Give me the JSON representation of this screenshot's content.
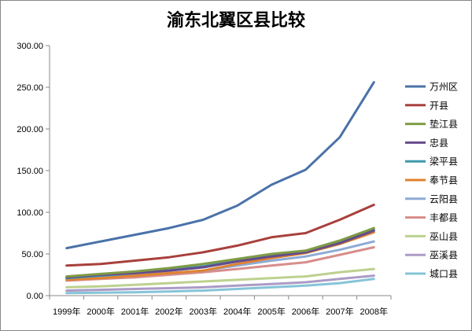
{
  "chart_data": {
    "type": "line",
    "title": "渝东北翼区县比较",
    "xlabel": "",
    "ylabel": "",
    "categories": [
      "1999年",
      "2000年",
      "2001年",
      "2002年",
      "2003年",
      "2004年",
      "2005年",
      "2006年",
      "2007年",
      "2008年"
    ],
    "ylim": [
      0,
      300
    ],
    "yticks": [
      "0.00",
      "50.00",
      "100.00",
      "150.00",
      "200.00",
      "250.00",
      "300.00"
    ],
    "grid": false,
    "legend_position": "right",
    "series": [
      {
        "name": "万州区",
        "color": "#4a72a8",
        "values": [
          57,
          65,
          73,
          81,
          91,
          108,
          133,
          151,
          190,
          256
        ]
      },
      {
        "name": "开县",
        "color": "#a8403c",
        "values": [
          36,
          38,
          42,
          46,
          52,
          60,
          70,
          75,
          91,
          109
        ]
      },
      {
        "name": "垫江县",
        "color": "#7f9b45",
        "values": [
          23,
          26,
          29,
          33,
          38,
          44,
          50,
          54,
          66,
          81
        ]
      },
      {
        "name": "忠县",
        "color": "#654b8c",
        "values": [
          22,
          25,
          27,
          30,
          34,
          41,
          47,
          52,
          63,
          78
        ]
      },
      {
        "name": "梁平县",
        "color": "#3e97ad",
        "values": [
          21,
          24,
          27,
          31,
          35,
          42,
          49,
          53,
          64,
          79
        ]
      },
      {
        "name": "奉节县",
        "color": "#e0822e",
        "values": [
          19,
          21,
          24,
          27,
          30,
          38,
          45,
          51,
          62,
          76
        ]
      },
      {
        "name": "云阳县",
        "color": "#8eaad6",
        "values": [
          21,
          23,
          25,
          27,
          30,
          36,
          42,
          47,
          55,
          65
        ]
      },
      {
        "name": "丰都县",
        "color": "#d78d8b",
        "values": [
          18,
          20,
          22,
          25,
          28,
          32,
          36,
          40,
          49,
          58
        ]
      },
      {
        "name": "巫山县",
        "color": "#bdd18f",
        "values": [
          10,
          11,
          13,
          15,
          17,
          19,
          21,
          23,
          28,
          32
        ]
      },
      {
        "name": "巫溪县",
        "color": "#ab9bc6",
        "values": [
          6,
          7,
          8,
          9,
          10,
          12,
          14,
          16,
          20,
          24
        ]
      },
      {
        "name": "城口县",
        "color": "#86c4d8",
        "values": [
          3,
          3.5,
          4,
          5,
          6,
          8,
          10,
          12,
          15,
          20
        ]
      }
    ]
  }
}
